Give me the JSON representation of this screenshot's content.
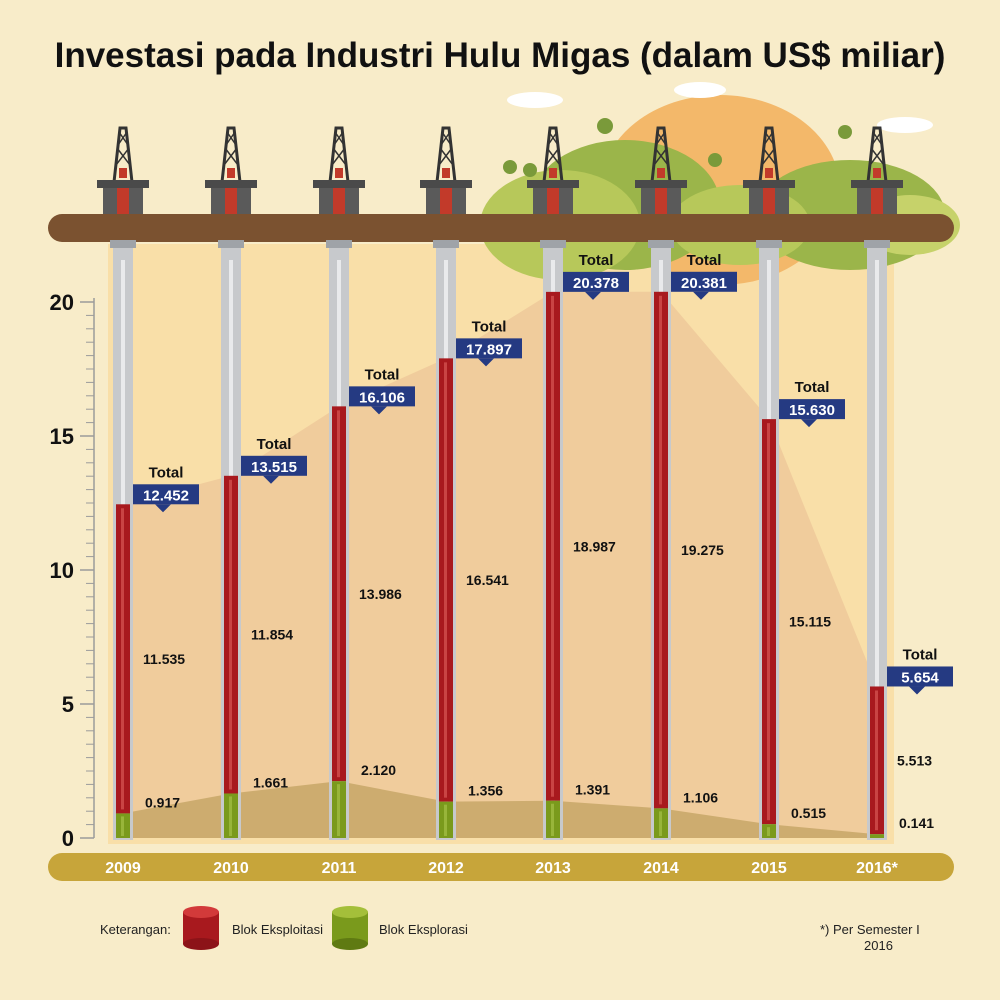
{
  "title": "Investasi pada Industri Hulu Migas (dalam US$ miliar)",
  "chart_data": {
    "type": "bar",
    "stacked": true,
    "categories": [
      "2009",
      "2010",
      "2011",
      "2012",
      "2013",
      "2014",
      "2015",
      "2016*"
    ],
    "series": [
      {
        "name": "Blok Eksploitasi",
        "color": "#a8191e",
        "values": [
          11.535,
          11.854,
          13.986,
          16.541,
          18.987,
          19.275,
          15.115,
          5.513
        ]
      },
      {
        "name": "Blok Eksplorasi",
        "color": "#7a9a1c",
        "values": [
          0.917,
          1.661,
          2.12,
          1.356,
          1.391,
          1.106,
          0.515,
          0.141
        ]
      }
    ],
    "totals": [
      12.452,
      13.515,
      16.106,
      17.897,
      20.378,
      20.381,
      15.63,
      5.654
    ],
    "value_labels": {
      "exploitation": [
        "11.535",
        "11.854",
        "13.986",
        "16.541",
        "18.987",
        "19.275",
        "15.115",
        "5.513"
      ],
      "exploration": [
        "0.917",
        "1.661",
        "2.120",
        "1.356",
        "1.391",
        "1.106",
        "0.515",
        "0.141"
      ],
      "totals": [
        "12.452",
        "13.515",
        "16.106",
        "17.897",
        "20.378",
        "20.381",
        "15.630",
        "5.654"
      ]
    },
    "total_label": "Total",
    "y_ticks": [
      "0",
      "5",
      "10",
      "15",
      "20"
    ],
    "ylim": [
      0,
      20
    ],
    "title": "Investasi pada Industri Hulu Migas (dalam US$ miliar)",
    "xlabel": "",
    "ylabel": ""
  },
  "legend": {
    "label": "Keterangan:",
    "items": [
      "Blok Eksploitasi",
      "Blok Eksplorasi"
    ]
  },
  "footnote": {
    "line1": "*) Per Semester I",
    "line2": "2016"
  },
  "colors": {
    "background": "#f8ecc9",
    "ground": "#7b5230",
    "axis_band": "#c7a53a",
    "total_badge": "#253a82",
    "area_fill": "#efc99a"
  }
}
